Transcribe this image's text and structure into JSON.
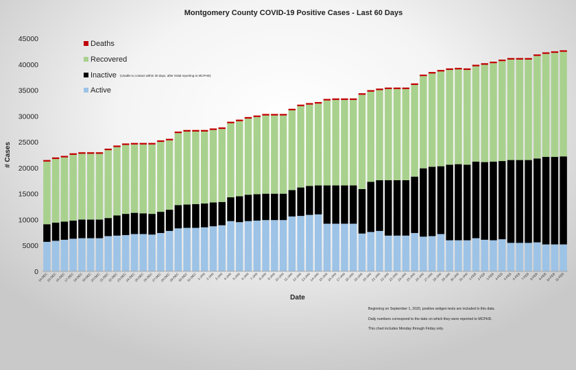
{
  "chart_data": {
    "type": "bar",
    "stacked": true,
    "title": "Montgomery County COVID-19 Positive Cases  - Last 60 Days",
    "xlabel": "Date",
    "ylabel": "# Cases",
    "ylim": [
      0,
      45000
    ],
    "yticks": [
      0,
      5000,
      10000,
      15000,
      20000,
      25000,
      30000,
      35000,
      40000,
      45000
    ],
    "grid": false,
    "legend_position": "top-left",
    "categories": [
      "14-DEC",
      "15-DEC",
      "16-DEC",
      "17-DEC",
      "18-DEC",
      "19-DEC",
      "20-DEC",
      "21-DEC",
      "22-DEC",
      "23-DEC",
      "24-DEC",
      "25-DEC",
      "26-DEC",
      "27-DEC",
      "28-DEC",
      "29-DEC",
      "30-DEC",
      "31-DEC",
      "1-JAN",
      "2-JAN",
      "3-JAN",
      "4-JAN",
      "5-JAN",
      "6-JAN",
      "7-JAN",
      "8-JAN",
      "9-JAN",
      "10-JAN",
      "11-JAN",
      "12-JAN",
      "13-JAN",
      "14-JAN",
      "15-JAN",
      "16-JAN",
      "17-JAN",
      "18-JAN",
      "19-JAN",
      "20-JAN",
      "21-JAN",
      "22-JAN",
      "23-JAN",
      "24-JAN",
      "25-JAN",
      "26-JAN",
      "27-JAN",
      "28-JAN",
      "29-JAN",
      "30-JAN",
      "31-JAN",
      "1-FEB",
      "2-FEB",
      "3-FEB",
      "4-FEB",
      "5-FEB",
      "6-FEB",
      "7-FEB",
      "8-FEB",
      "9-FEB",
      "10-FEB",
      "11-FEB"
    ],
    "series": [
      {
        "name": "Active",
        "color": "#9dc3e6",
        "values": [
          5700,
          5900,
          6100,
          6300,
          6400,
          6400,
          6400,
          6800,
          6900,
          7000,
          7200,
          7200,
          7100,
          7400,
          7800,
          8300,
          8400,
          8400,
          8500,
          8700,
          8900,
          9700,
          9500,
          9700,
          9800,
          9900,
          9900,
          9900,
          10600,
          10700,
          10900,
          11000,
          9200,
          9200,
          9200,
          9200,
          7300,
          7600,
          7800,
          6900,
          6900,
          6900,
          7400,
          6700,
          6800,
          7200,
          6000,
          6000,
          6000,
          6400,
          6100,
          6000,
          6200,
          5500,
          5500,
          5500,
          5600,
          5200,
          5200,
          5200
        ]
      },
      {
        "name": "Inactive",
        "color": "#000000",
        "values": [
          3400,
          3500,
          3500,
          3500,
          3600,
          3600,
          3600,
          3500,
          3900,
          4100,
          4100,
          4000,
          4000,
          4100,
          4100,
          4500,
          4500,
          4600,
          4600,
          4600,
          4500,
          4600,
          5000,
          5100,
          5100,
          5100,
          5100,
          5100,
          5100,
          5500,
          5600,
          5600,
          7400,
          7400,
          7400,
          7400,
          8600,
          9700,
          9800,
          10700,
          10700,
          10700,
          10900,
          13200,
          13400,
          13100,
          14600,
          14700,
          14600,
          14800,
          15000,
          15200,
          15100,
          16000,
          16000,
          16000,
          16200,
          16900,
          16900,
          17000
        ]
      },
      {
        "name": "Recovered",
        "color": "#a9d18e",
        "values": [
          12100,
          12300,
          12400,
          12700,
          12700,
          12700,
          12700,
          13100,
          13200,
          13300,
          13200,
          13300,
          13400,
          13500,
          13400,
          13900,
          14100,
          14000,
          13900,
          14000,
          14100,
          14300,
          14500,
          14700,
          14900,
          15100,
          15100,
          15100,
          15400,
          15700,
          15700,
          15800,
          16400,
          16500,
          16500,
          16500,
          18200,
          17400,
          17400,
          17600,
          17600,
          17600,
          17700,
          17800,
          18000,
          18300,
          18300,
          18300,
          18300,
          18400,
          18800,
          19000,
          19300,
          19400,
          19400,
          19400,
          19800,
          19900,
          20100,
          20200
        ]
      },
      {
        "name": "Deaths",
        "color": "#c00000",
        "values": [
          300,
          300,
          300,
          300,
          300,
          300,
          300,
          300,
          300,
          300,
          300,
          300,
          300,
          300,
          300,
          300,
          300,
          300,
          300,
          300,
          300,
          300,
          300,
          300,
          300,
          300,
          300,
          300,
          300,
          300,
          300,
          300,
          300,
          300,
          300,
          300,
          300,
          300,
          300,
          300,
          300,
          300,
          300,
          300,
          300,
          300,
          300,
          300,
          300,
          300,
          300,
          300,
          300,
          300,
          300,
          300,
          300,
          300,
          300,
          300
        ]
      }
    ],
    "legend": {
      "entries": [
        "Deaths",
        "Recovered",
        "Inactive",
        "Active"
      ],
      "inactive_note": "(Unable to contact within 30 days, after initial reporting to MCPHD)"
    },
    "notes": [
      "Beginning on September 1, 2020, positive antigen tests are included in this data.",
      "Daily numbers correspond to the date on which they were reported to MCPHD.",
      "This chart includes Monday through Firday only."
    ]
  }
}
